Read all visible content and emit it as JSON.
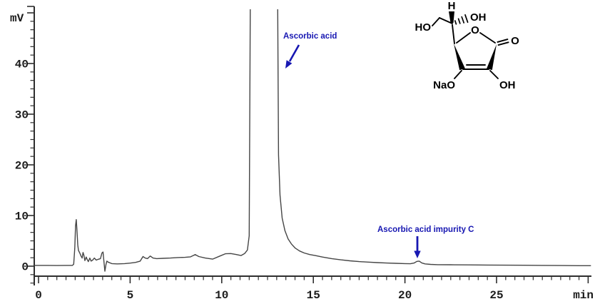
{
  "chart_data": {
    "type": "line",
    "description": "HPLC chromatogram with detector response in mV versus retention time in min",
    "xlabel": "min",
    "ylabel": "mV",
    "xlim": [
      0,
      30.2
    ],
    "ylim": [
      -3.5,
      51
    ],
    "grid": false,
    "x_ticks_major": [
      0,
      5,
      10,
      15,
      20,
      25,
      30
    ],
    "x_tick_labels": [
      "0",
      "5",
      "10",
      "15",
      "20",
      "25",
      ""
    ],
    "x_minor_step_min": 0.5,
    "y_ticks_major": [
      0,
      10,
      20,
      30,
      40
    ],
    "y_tick_labels": [
      "0",
      "10",
      "20",
      "30",
      "40"
    ],
    "y_minors_per_major": 6,
    "trace_color": "#454545",
    "axis_color": "#2e2e2e",
    "annotation_color": "#1717b2",
    "peaks": [
      {
        "label": "Ascorbic acid",
        "retention_min": 12.3,
        "apex_mV": 51,
        "clipped": true
      },
      {
        "label": "Ascorbic acid impurity C",
        "retention_min": 20.7,
        "apex_mV": 1.0,
        "clipped": false
      }
    ],
    "trace": [
      [
        -0.23,
        0.15
      ],
      [
        0.5,
        0.15
      ],
      [
        1.0,
        0.12
      ],
      [
        1.5,
        0.15
      ],
      [
        1.85,
        0.15
      ],
      [
        1.92,
        0.4
      ],
      [
        1.98,
        3.5
      ],
      [
        2.02,
        8.0
      ],
      [
        2.06,
        9.2
      ],
      [
        2.1,
        7.0
      ],
      [
        2.14,
        4.2
      ],
      [
        2.18,
        3.1
      ],
      [
        2.25,
        2.6
      ],
      [
        2.32,
        2.0
      ],
      [
        2.38,
        1.6
      ],
      [
        2.43,
        2.7
      ],
      [
        2.48,
        2.1
      ],
      [
        2.53,
        1.1
      ],
      [
        2.6,
        1.8
      ],
      [
        2.66,
        1.3
      ],
      [
        2.72,
        0.9
      ],
      [
        2.8,
        1.6
      ],
      [
        2.87,
        1.0
      ],
      [
        2.95,
        1.2
      ],
      [
        3.05,
        1.6
      ],
      [
        3.15,
        1.2
      ],
      [
        3.25,
        1.35
      ],
      [
        3.38,
        1.5
      ],
      [
        3.46,
        2.6
      ],
      [
        3.52,
        2.8
      ],
      [
        3.58,
        0.6
      ],
      [
        3.62,
        -1.0
      ],
      [
        3.68,
        0.3
      ],
      [
        3.73,
        1.0
      ],
      [
        3.8,
        0.8
      ],
      [
        4.0,
        0.5
      ],
      [
        4.3,
        0.45
      ],
      [
        4.7,
        0.5
      ],
      [
        5.0,
        0.6
      ],
      [
        5.3,
        0.75
      ],
      [
        5.55,
        1.0
      ],
      [
        5.7,
        1.9
      ],
      [
        5.82,
        1.6
      ],
      [
        5.95,
        1.5
      ],
      [
        6.1,
        2.0
      ],
      [
        6.25,
        1.6
      ],
      [
        6.45,
        1.5
      ],
      [
        6.8,
        1.55
      ],
      [
        7.2,
        1.6
      ],
      [
        7.6,
        1.7
      ],
      [
        8.0,
        1.75
      ],
      [
        8.3,
        1.85
      ],
      [
        8.55,
        2.3
      ],
      [
        8.75,
        1.9
      ],
      [
        9.1,
        1.6
      ],
      [
        9.5,
        1.4
      ],
      [
        9.9,
        2.0
      ],
      [
        10.2,
        2.45
      ],
      [
        10.5,
        2.5
      ],
      [
        10.8,
        2.3
      ],
      [
        11.05,
        2.1
      ],
      [
        11.25,
        2.5
      ],
      [
        11.4,
        3.2
      ],
      [
        11.5,
        6.0
      ],
      [
        11.57,
        60
      ],
      [
        13.04,
        60
      ],
      [
        13.1,
        22
      ],
      [
        13.18,
        14
      ],
      [
        13.3,
        9.5
      ],
      [
        13.45,
        7.0
      ],
      [
        13.62,
        5.4
      ],
      [
        13.8,
        4.4
      ],
      [
        14.0,
        3.6
      ],
      [
        14.25,
        3.0
      ],
      [
        14.5,
        2.6
      ],
      [
        14.8,
        2.3
      ],
      [
        15.1,
        2.1
      ],
      [
        15.5,
        1.8
      ],
      [
        16.0,
        1.5
      ],
      [
        16.5,
        1.25
      ],
      [
        17.0,
        1.05
      ],
      [
        17.5,
        0.9
      ],
      [
        18.0,
        0.8
      ],
      [
        18.5,
        0.7
      ],
      [
        19.0,
        0.62
      ],
      [
        19.5,
        0.56
      ],
      [
        20.0,
        0.5
      ],
      [
        20.3,
        0.48
      ],
      [
        20.5,
        0.62
      ],
      [
        20.65,
        0.95
      ],
      [
        20.78,
        1.0
      ],
      [
        20.92,
        0.65
      ],
      [
        21.1,
        0.45
      ],
      [
        21.4,
        0.35
      ],
      [
        21.8,
        0.3
      ],
      [
        22.5,
        0.28
      ],
      [
        23.5,
        0.25
      ],
      [
        24.5,
        0.22
      ],
      [
        25.5,
        0.2
      ],
      [
        26.5,
        0.18
      ],
      [
        27.5,
        0.15
      ],
      [
        28.5,
        0.12
      ],
      [
        29.5,
        0.1
      ],
      [
        30.15,
        0.1
      ]
    ]
  },
  "axes": {
    "y_unit": "mV",
    "x_unit": "min"
  },
  "annotations": {
    "peak1_label": "Ascorbic acid",
    "peak2_label": "Ascorbic acid impurity C"
  },
  "structure": {
    "compound": "sodium ascorbate",
    "atoms": {
      "ho_chain": "HO",
      "h_stereo": "H",
      "oh_stereo": "OH",
      "ring_o": "O",
      "carbonyl_o": "O",
      "nao": "NaO",
      "oh_enol": "OH"
    }
  }
}
